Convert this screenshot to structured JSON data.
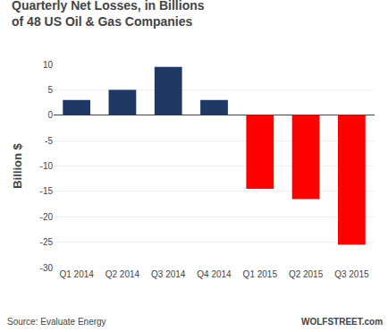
{
  "chart_data": {
    "type": "bar",
    "title": "Quarterly Net Losses, in Billions",
    "subtitle": "of 48 US Oil & Gas Companies",
    "y_label": "Billion $",
    "categories": [
      "Q1 2014",
      "Q2 2014",
      "Q3 2014",
      "Q4 2014",
      "Q1 2015",
      "Q2 2015",
      "Q3 2015"
    ],
    "values": [
      3.0,
      5.0,
      9.5,
      3.0,
      -14.5,
      -16.5,
      -25.5
    ],
    "colors": [
      "#1f3864",
      "#1f3864",
      "#1f3864",
      "#1f3864",
      "#ff0000",
      "#ff0000",
      "#ff0000"
    ],
    "ylim": [
      -30,
      10
    ],
    "yticks": [
      -30,
      -25,
      -20,
      -15,
      -10,
      -5,
      0,
      5,
      10
    ],
    "grid": true,
    "annotations": [
      "Source: Evaluate Energy",
      "WOLFSTREET.com"
    ]
  }
}
